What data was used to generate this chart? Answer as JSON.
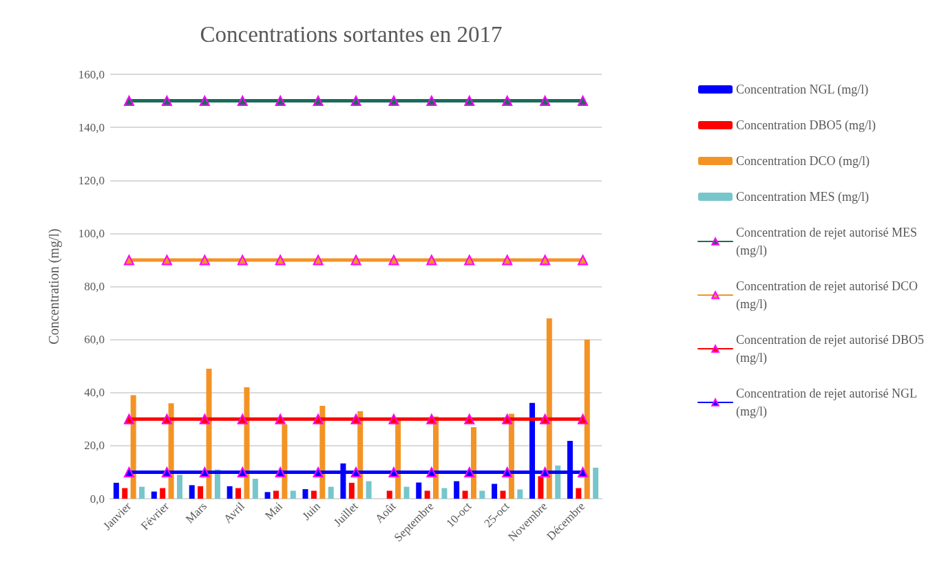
{
  "chart_data": {
    "type": "bar",
    "title": "Concentrations sortantes en 2017",
    "ylabel": "Concentration (mg/l)",
    "categories": [
      "Janvier",
      "Février",
      "Mars",
      "Avril",
      "Mai",
      "Juin",
      "Juillet",
      "Août",
      "Septembre",
      "10-oct",
      "25-oct",
      "Novembre",
      "Décembre"
    ],
    "series": [
      {
        "name": "Concentration NGL (mg/l)",
        "color": "#0000ff",
        "values": [
          6.0,
          2.7,
          5.1,
          4.7,
          2.5,
          3.6,
          13.3,
          null,
          6.1,
          6.6,
          5.6,
          36.1,
          21.8
        ]
      },
      {
        "name": "Concentration DBO5 (mg/l)",
        "color": "#ff0000",
        "values": [
          4,
          4,
          4.7,
          4,
          3,
          3,
          6,
          3,
          3,
          3,
          3,
          8.5,
          4
        ]
      },
      {
        "name": "Concentration DCO (mg/l)",
        "color": "#f39325",
        "values": [
          39,
          36,
          49,
          42,
          28,
          35,
          33,
          30,
          31,
          27,
          32,
          68,
          60
        ]
      },
      {
        "name": "Concentration MES (mg/l)",
        "color": "#76c6cc",
        "values": [
          4.5,
          9,
          11,
          7.5,
          3,
          4.5,
          6.6,
          4.5,
          4,
          3,
          3.5,
          12.5,
          11.7
        ]
      },
      {
        "name": "Concentration de rejet autorisé MES (mg/l)",
        "type": "line",
        "color": "#1a6b5a",
        "values": [
          150,
          150,
          150,
          150,
          150,
          150,
          150,
          150,
          150,
          150,
          150,
          150,
          150
        ]
      },
      {
        "name": "Concentration de rejet autorisé DCO (mg/l)",
        "type": "line",
        "color": "#f39325",
        "values": [
          90,
          90,
          90,
          90,
          90,
          90,
          90,
          90,
          90,
          90,
          90,
          90,
          90
        ]
      },
      {
        "name": "Concentration de rejet autorisé DBO5 (mg/l)",
        "type": "line",
        "color": "#ff0000",
        "values": [
          30,
          30,
          30,
          30,
          30,
          30,
          30,
          30,
          30,
          30,
          30,
          30,
          30
        ]
      },
      {
        "name": "Concentration de rejet autorisé NGL (mg/l)",
        "type": "line",
        "color": "#0000ff",
        "values": [
          10,
          10,
          10,
          10,
          10,
          10,
          10,
          10,
          10,
          10,
          10,
          10,
          10
        ]
      }
    ],
    "ylim": [
      0,
      160
    ],
    "yticks": [
      {
        "value": 0,
        "label": "0,0"
      },
      {
        "value": 20,
        "label": "20,0"
      },
      {
        "value": 40,
        "label": "40,0"
      },
      {
        "value": 60,
        "label": "60,0"
      },
      {
        "value": 80,
        "label": "80,0"
      },
      {
        "value": 100,
        "label": "100,0"
      },
      {
        "value": 120,
        "label": "120,0"
      },
      {
        "value": 140,
        "label": "140,0"
      },
      {
        "value": 160,
        "label": "160,0"
      }
    ],
    "grid": "y",
    "legend": "right",
    "marker": "triangle"
  }
}
